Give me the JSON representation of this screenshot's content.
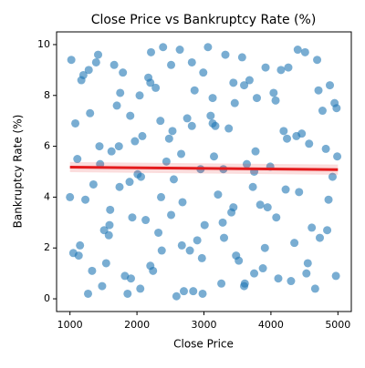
{
  "chart_data": {
    "type": "scatter",
    "title": "Close Price vs Bankruptcy Rate (%)",
    "x_label": "Close Price",
    "y_label": "Bankruptcy Rate (%)",
    "xlim": [
      800,
      5200
    ],
    "ylim": [
      -0.5,
      10.5
    ],
    "xticks": [
      1000,
      2000,
      3000,
      4000,
      5000
    ],
    "yticks": [
      0,
      2,
      4,
      6,
      8,
      10
    ],
    "grid": false,
    "color": "#1f77b4",
    "x": [
      1020,
      1150,
      1300,
      1480,
      1620,
      1790,
      1930,
      2080,
      2240,
      2390,
      2550,
      2700,
      2860,
      3010,
      3170,
      3320,
      3480,
      3640,
      3790,
      3950,
      4110,
      4260,
      4420,
      4570,
      4730,
      4880,
      4990,
      1080,
      1230,
      1390,
      1540,
      1700,
      1860,
      2010,
      2170,
      2320,
      2480,
      2640,
      2790,
      2950,
      3100,
      3260,
      3410,
      3570,
      3730,
      3880,
      4040,
      4190,
      4350,
      4510,
      4660,
      4820,
      4950,
      1050,
      1200,
      1350,
      1510,
      1660,
      1820,
      1970,
      2130,
      2280,
      2440,
      2590,
      2750,
      2900,
      3060,
      3210,
      3370,
      3520,
      3680,
      3840,
      3990,
      4150,
      4300,
      4460,
      4610,
      4770,
      4920,
      1110,
      1270,
      1420,
      1580,
      1730,
      1890,
      2040,
      2200,
      2350,
      2510,
      2660,
      2820,
      2970,
      3130,
      3280,
      3440,
      3600,
      3750,
      3910,
      4070,
      4220,
      4380,
      4530,
      4690,
      4840,
      4980,
      1000,
      1170,
      1330,
      1450,
      1600,
      1750,
      1910,
      2060,
      2210,
      2370,
      2530,
      2680,
      2840,
      2990,
      3150,
      3300,
      3460,
      3610,
      3770,
      3920,
      4080,
      4240,
      4400,
      4550,
      4710,
      4860,
      4970,
      1130,
      1280,
      1440,
      1590,
      1740,
      1900,
      2050,
      2200,
      2360,
      2510,
      2670,
      2820,
      2980,
      3130,
      3290,
      3440,
      3600,
      3750
    ],
    "y": [
      9.4,
      2.1,
      7.3,
      0.5,
      5.8,
      8.9,
      3.2,
      6.4,
      1.1,
      9.9,
      4.7,
      0.3,
      8.2,
      2.9,
      6.8,
      9.6,
      1.7,
      5.3,
      7.9,
      3.6,
      0.8,
      9.1,
      4.2,
      6.1,
      2.4,
      8.4,
      5.6,
      6.9,
      3.9,
      9.3,
      1.4,
      7.6,
      0.2,
      4.9,
      8.7,
      2.6,
      6.3,
      9.8,
      1.9,
      5.1,
      7.2,
      0.6,
      3.4,
      9.5,
      4.4,
      1.2,
      8.1,
      6.6,
      2.2,
      9.7,
      0.4,
      5.9,
      7.7,
      1.8,
      8.8,
      4.5,
      2.7,
      9.2,
      0.9,
      6.2,
      3.1,
      8.3,
      5.4,
      0.1,
      7.1,
      2.3,
      9.9,
      4.1,
      6.7,
      1.5,
      8.6,
      3.7,
      5.2,
      9.0,
      0.7,
      6.5,
      2.8,
      7.4,
      4.8,
      5.5,
      0.2,
      9.6,
      2.5,
      6.0,
      4.6,
      8.0,
      1.3,
      7.0,
      3.3,
      5.7,
      9.3,
      1.6,
      6.9,
      3.0,
      8.5,
      0.5,
      5.0,
      2.0,
      7.8,
      4.3,
      6.4,
      1.0,
      9.4,
      2.7,
      7.5,
      4.0,
      8.6,
      1.1,
      5.3,
      3.5,
      8.1,
      0.8,
      4.8,
      9.7,
      1.9,
      6.6,
      3.8,
      0.3,
      8.9,
      5.6,
      2.4,
      7.7,
      0.6,
      5.8,
      9.1,
      3.2,
      6.3,
      9.8,
      1.4,
      8.2,
      3.9,
      0.9,
      1.7,
      9.0,
      6.0,
      2.9,
      4.4,
      7.2,
      0.4,
      8.5,
      4.0,
      9.2,
      2.1,
      6.8,
      0.2,
      7.9,
      5.1,
      3.6,
      8.4,
      1.0
    ],
    "trend": {
      "color": "#e41a1c",
      "x": [
        1000,
        5000
      ],
      "y": [
        5.18,
        5.08
      ],
      "lower": [
        4.98,
        4.88
      ],
      "upper": [
        5.38,
        5.28
      ]
    }
  }
}
